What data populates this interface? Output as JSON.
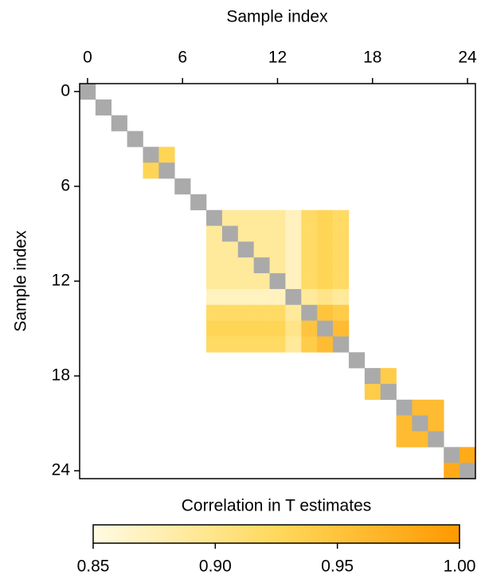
{
  "chart_data": {
    "type": "heatmap",
    "xlabel": "Sample index",
    "ylabel": "Sample index",
    "xlim": [
      -0.5,
      24.5
    ],
    "ylim": [
      -0.5,
      24.5
    ],
    "xticks": [
      0,
      6,
      12,
      18,
      24
    ],
    "yticks": [
      0,
      6,
      12,
      18,
      24
    ],
    "diagonal_color": "#aaaaaa",
    "colormap": [
      "#fffbe3",
      "#ffd95c",
      "#ff9900"
    ],
    "colorbar": {
      "label": "Correlation in T estimates",
      "vlim": [
        0.85,
        1.0
      ],
      "ticks": [
        0.85,
        {
          "value": 0.9,
          "label": "0.90"
        },
        0.95,
        {
          "value": 1.0,
          "label": "1.00"
        }
      ]
    },
    "z": [
      [
        null,
        null,
        null,
        null,
        null,
        null,
        null,
        null,
        null,
        null,
        null,
        null,
        null,
        null,
        null,
        null,
        null,
        null,
        null,
        null,
        null,
        null,
        null,
        null,
        null
      ],
      [
        null,
        null,
        null,
        null,
        null,
        null,
        null,
        null,
        null,
        null,
        null,
        null,
        null,
        null,
        null,
        null,
        null,
        null,
        null,
        null,
        null,
        null,
        null,
        null,
        null
      ],
      [
        null,
        null,
        null,
        null,
        null,
        null,
        null,
        null,
        null,
        null,
        null,
        null,
        null,
        null,
        null,
        null,
        null,
        null,
        null,
        null,
        null,
        null,
        null,
        null,
        null
      ],
      [
        null,
        null,
        null,
        null,
        null,
        null,
        null,
        null,
        null,
        null,
        null,
        null,
        null,
        null,
        null,
        null,
        null,
        null,
        null,
        null,
        null,
        null,
        null,
        null,
        null
      ],
      [
        null,
        null,
        null,
        null,
        null,
        0.93,
        null,
        null,
        null,
        null,
        null,
        null,
        null,
        null,
        null,
        null,
        null,
        null,
        null,
        null,
        null,
        null,
        null,
        null,
        null
      ],
      [
        null,
        null,
        null,
        null,
        0.93,
        null,
        null,
        null,
        null,
        null,
        null,
        null,
        null,
        null,
        null,
        null,
        null,
        null,
        null,
        null,
        null,
        null,
        null,
        null,
        null
      ],
      [
        null,
        null,
        null,
        null,
        null,
        null,
        null,
        null,
        null,
        null,
        null,
        null,
        null,
        null,
        null,
        null,
        null,
        null,
        null,
        null,
        null,
        null,
        null,
        null,
        null
      ],
      [
        null,
        null,
        null,
        null,
        null,
        null,
        null,
        null,
        null,
        null,
        null,
        null,
        null,
        null,
        null,
        null,
        null,
        null,
        null,
        null,
        null,
        null,
        null,
        null,
        null
      ],
      [
        null,
        null,
        null,
        null,
        null,
        null,
        null,
        null,
        null,
        0.89,
        0.89,
        0.89,
        0.89,
        0.87,
        0.92,
        0.93,
        0.92,
        null,
        null,
        null,
        null,
        null,
        null,
        null,
        null
      ],
      [
        null,
        null,
        null,
        null,
        null,
        null,
        null,
        null,
        0.89,
        null,
        0.89,
        0.89,
        0.89,
        0.87,
        0.92,
        0.93,
        0.92,
        null,
        null,
        null,
        null,
        null,
        null,
        null,
        null
      ],
      [
        null,
        null,
        null,
        null,
        null,
        null,
        null,
        null,
        0.89,
        0.89,
        null,
        0.89,
        0.89,
        0.87,
        0.92,
        0.93,
        0.92,
        null,
        null,
        null,
        null,
        null,
        null,
        null,
        null
      ],
      [
        null,
        null,
        null,
        null,
        null,
        null,
        null,
        null,
        0.89,
        0.89,
        0.89,
        null,
        0.89,
        0.87,
        0.92,
        0.93,
        0.92,
        null,
        null,
        null,
        null,
        null,
        null,
        null,
        null
      ],
      [
        null,
        null,
        null,
        null,
        null,
        null,
        null,
        null,
        0.89,
        0.89,
        0.89,
        0.89,
        null,
        0.87,
        0.92,
        0.93,
        0.92,
        null,
        null,
        null,
        null,
        null,
        null,
        null,
        null
      ],
      [
        null,
        null,
        null,
        null,
        null,
        null,
        null,
        null,
        0.87,
        0.87,
        0.87,
        0.87,
        0.87,
        null,
        0.89,
        0.9,
        0.89,
        null,
        null,
        null,
        null,
        null,
        null,
        null,
        null
      ],
      [
        null,
        null,
        null,
        null,
        null,
        null,
        null,
        null,
        0.92,
        0.92,
        0.92,
        0.92,
        0.92,
        0.89,
        null,
        0.95,
        0.94,
        null,
        null,
        null,
        null,
        null,
        null,
        null,
        null
      ],
      [
        null,
        null,
        null,
        null,
        null,
        null,
        null,
        null,
        0.93,
        0.93,
        0.93,
        0.93,
        0.93,
        0.9,
        0.95,
        null,
        0.96,
        null,
        null,
        null,
        null,
        null,
        null,
        null,
        null
      ],
      [
        null,
        null,
        null,
        null,
        null,
        null,
        null,
        null,
        0.92,
        0.92,
        0.92,
        0.92,
        0.92,
        0.89,
        0.94,
        0.96,
        null,
        null,
        null,
        null,
        null,
        null,
        null,
        null,
        null
      ],
      [
        null,
        null,
        null,
        null,
        null,
        null,
        null,
        null,
        null,
        null,
        null,
        null,
        null,
        null,
        null,
        null,
        null,
        null,
        null,
        null,
        null,
        null,
        null,
        null,
        null
      ],
      [
        null,
        null,
        null,
        null,
        null,
        null,
        null,
        null,
        null,
        null,
        null,
        null,
        null,
        null,
        null,
        null,
        null,
        null,
        null,
        0.94,
        null,
        null,
        null,
        null,
        null
      ],
      [
        null,
        null,
        null,
        null,
        null,
        null,
        null,
        null,
        null,
        null,
        null,
        null,
        null,
        null,
        null,
        null,
        null,
        null,
        0.94,
        null,
        null,
        null,
        null,
        null,
        null
      ],
      [
        null,
        null,
        null,
        null,
        null,
        null,
        null,
        null,
        null,
        null,
        null,
        null,
        null,
        null,
        null,
        null,
        null,
        null,
        null,
        null,
        null,
        0.96,
        0.96,
        null,
        null
      ],
      [
        null,
        null,
        null,
        null,
        null,
        null,
        null,
        null,
        null,
        null,
        null,
        null,
        null,
        null,
        null,
        null,
        null,
        null,
        null,
        null,
        0.96,
        null,
        0.96,
        null,
        null
      ],
      [
        null,
        null,
        null,
        null,
        null,
        null,
        null,
        null,
        null,
        null,
        null,
        null,
        null,
        null,
        null,
        null,
        null,
        null,
        null,
        null,
        0.96,
        0.96,
        null,
        null,
        null
      ],
      [
        null,
        null,
        null,
        null,
        null,
        null,
        null,
        null,
        null,
        null,
        null,
        null,
        null,
        null,
        null,
        null,
        null,
        null,
        null,
        null,
        null,
        null,
        null,
        null,
        0.98
      ],
      [
        null,
        null,
        null,
        null,
        null,
        null,
        null,
        null,
        null,
        null,
        null,
        null,
        null,
        null,
        null,
        null,
        null,
        null,
        null,
        null,
        null,
        null,
        null,
        0.98,
        null
      ]
    ]
  }
}
